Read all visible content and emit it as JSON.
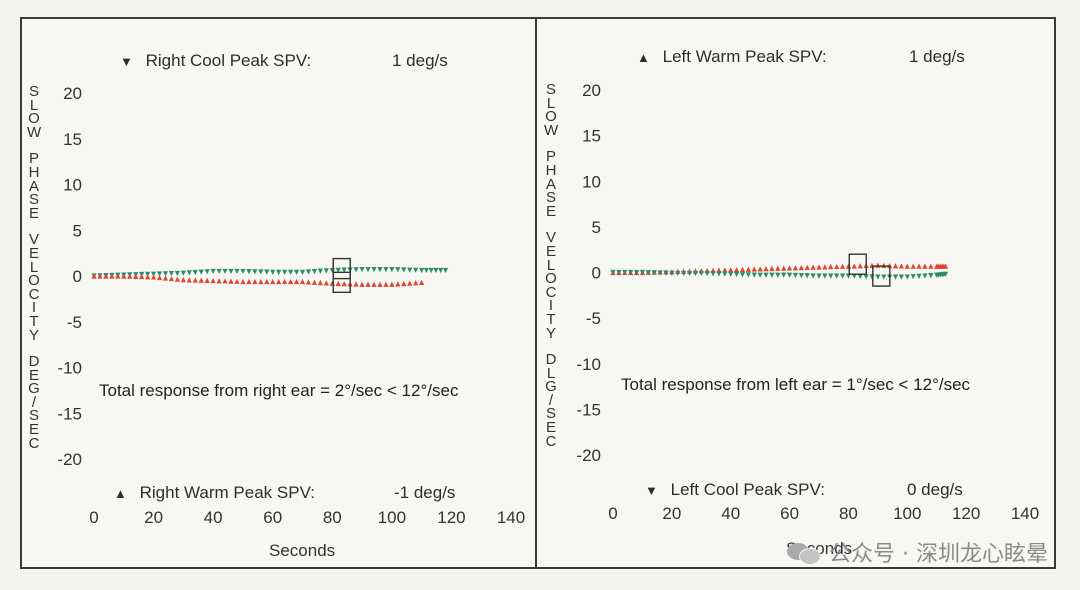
{
  "charts": [
    {
      "ylabel_letters": [
        "S",
        "L",
        "O",
        "W",
        "",
        "P",
        "H",
        "A",
        "S",
        "E",
        "",
        "V",
        "E",
        "L",
        "O",
        "C",
        "I",
        "T",
        "Y",
        "",
        "D",
        "E",
        "G",
        "/",
        "S",
        "E",
        "C"
      ],
      "top_marker": "▼",
      "top_label": "Right Cool Peak SPV:",
      "top_value": "1 deg/s",
      "bottom_marker": "▲",
      "bottom_label": "Right Warm Peak SPV:",
      "bottom_value": "-1 deg/s",
      "note": "Total response from right ear = 2°/sec < 12°/sec",
      "xlabel": "Seconds"
    },
    {
      "ylabel_letters": [
        "S",
        "L",
        "O",
        "W",
        "",
        "P",
        "H",
        "A",
        "S",
        "E",
        "",
        "V",
        "E",
        "L",
        "O",
        "C",
        "I",
        "T",
        "Y",
        "",
        "D",
        "L",
        "G",
        "/",
        "S",
        "E",
        "C"
      ],
      "top_marker": "▲",
      "top_label": "Left Warm Peak SPV:",
      "top_value": "1 deg/s",
      "bottom_marker": "▼",
      "bottom_label": "Left Cool Peak SPV:",
      "bottom_value": "0 deg/s",
      "note": "Total response from left ear = 1°/sec < 12°/sec",
      "xlabel": "Seconds"
    }
  ],
  "chart_data": [
    {
      "type": "scatter",
      "title": "",
      "xlabel": "Seconds",
      "ylabel": "SLOW PHASE VELOCITY DEG/SEC",
      "xlim": [
        0,
        140
      ],
      "ylim": [
        -20,
        20
      ],
      "xticks": [
        0,
        20,
        40,
        60,
        80,
        100,
        120,
        140
      ],
      "yticks": [
        20,
        15,
        10,
        5,
        0,
        -5,
        -10,
        -15,
        -20
      ],
      "series": [
        {
          "name": "Right Cool",
          "marker": "▼",
          "color": "#2e8a6e",
          "x": [
            0,
            10,
            20,
            30,
            40,
            50,
            60,
            70,
            80,
            90,
            100,
            110,
            118
          ],
          "y": [
            0,
            0.1,
            0.2,
            0.3,
            0.5,
            0.5,
            0.4,
            0.4,
            0.6,
            0.7,
            0.7,
            0.6,
            0.6
          ]
        },
        {
          "name": "Right Warm",
          "marker": "▲",
          "color": "#e0452f",
          "x": [
            0,
            10,
            20,
            30,
            40,
            50,
            60,
            70,
            80,
            90,
            100,
            110
          ],
          "y": [
            0,
            0,
            -0.1,
            -0.4,
            -0.5,
            -0.6,
            -0.6,
            -0.6,
            -0.8,
            -0.9,
            -0.9,
            -0.7
          ]
        }
      ],
      "peak_boxes": [
        {
          "x": 83,
          "y": 0.7
        },
        {
          "x": 83,
          "y": -0.8
        }
      ],
      "legend": "top and bottom"
    },
    {
      "type": "scatter",
      "title": "",
      "xlabel": "Seconds",
      "ylabel": "SLOW PHASE VELOCITY DLG/SEC",
      "xlim": [
        0,
        140
      ],
      "ylim": [
        -20,
        20
      ],
      "xticks": [
        0,
        20,
        40,
        60,
        80,
        100,
        120,
        140
      ],
      "yticks": [
        20,
        15,
        10,
        5,
        0,
        -5,
        -10,
        -15,
        -20
      ],
      "series": [
        {
          "name": "Left Warm",
          "marker": "▲",
          "color": "#e0452f",
          "x": [
            0,
            10,
            20,
            30,
            40,
            50,
            60,
            70,
            80,
            90,
            100,
            110,
            113
          ],
          "y": [
            0,
            0,
            0.1,
            0.2,
            0.3,
            0.4,
            0.5,
            0.6,
            0.7,
            0.8,
            0.7,
            0.7,
            0.7
          ]
        },
        {
          "name": "Left Cool",
          "marker": "▼",
          "color": "#2e8a6e",
          "x": [
            0,
            10,
            20,
            30,
            40,
            50,
            60,
            70,
            80,
            90,
            100,
            110,
            113
          ],
          "y": [
            0,
            0,
            -0.1,
            -0.1,
            -0.2,
            -0.3,
            -0.3,
            -0.4,
            -0.4,
            -0.5,
            -0.5,
            -0.3,
            -0.2
          ]
        }
      ],
      "peak_boxes": [
        {
          "x": 83,
          "y": 0.8
        },
        {
          "x": 91,
          "y": -0.5
        }
      ],
      "legend": "top and bottom"
    }
  ],
  "watermark": "公众号 · 深圳龙心眩晕"
}
